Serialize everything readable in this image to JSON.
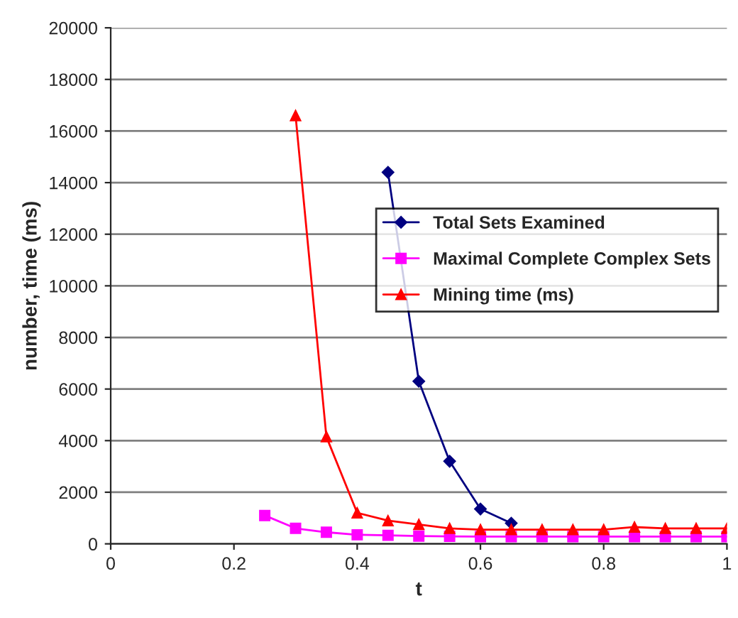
{
  "chart_data": {
    "type": "line",
    "xlabel": "t",
    "ylabel": "number, time (ms)",
    "xlim": [
      0,
      1
    ],
    "xticks": [
      0,
      0.2,
      0.4,
      0.6,
      0.8,
      1
    ],
    "ylim": [
      0,
      20000
    ],
    "yticks": [
      0,
      2000,
      4000,
      6000,
      8000,
      10000,
      12000,
      14000,
      16000,
      18000,
      20000
    ],
    "grid": "y",
    "legend": "right",
    "series": [
      {
        "name": "Total Sets Examined",
        "color": "#000080",
        "marker": "diamond",
        "x": [
          0.45,
          0.5,
          0.55,
          0.6,
          0.65
        ],
        "values": [
          14400,
          6300,
          3200,
          1350,
          800
        ]
      },
      {
        "name": "Maximal Complete Complex Sets",
        "color": "#ff00ff",
        "marker": "square",
        "x": [
          0.25,
          0.3,
          0.35,
          0.4,
          0.45,
          0.5,
          0.55,
          0.6,
          0.65,
          0.7,
          0.75,
          0.8,
          0.85,
          0.9,
          0.95,
          1.0
        ],
        "values": [
          1100,
          600,
          450,
          350,
          330,
          300,
          290,
          280,
          280,
          280,
          280,
          280,
          280,
          280,
          280,
          280
        ]
      },
      {
        "name": "Mining time (ms)",
        "color": "#ff0000",
        "marker": "triangle",
        "x": [
          0.3,
          0.35,
          0.4,
          0.45,
          0.5,
          0.55,
          0.6,
          0.65,
          0.7,
          0.75,
          0.8,
          0.85,
          0.9,
          0.95,
          1.0
        ],
        "values": [
          16600,
          4150,
          1200,
          900,
          750,
          600,
          550,
          550,
          550,
          550,
          550,
          650,
          600,
          600,
          600
        ]
      }
    ]
  }
}
